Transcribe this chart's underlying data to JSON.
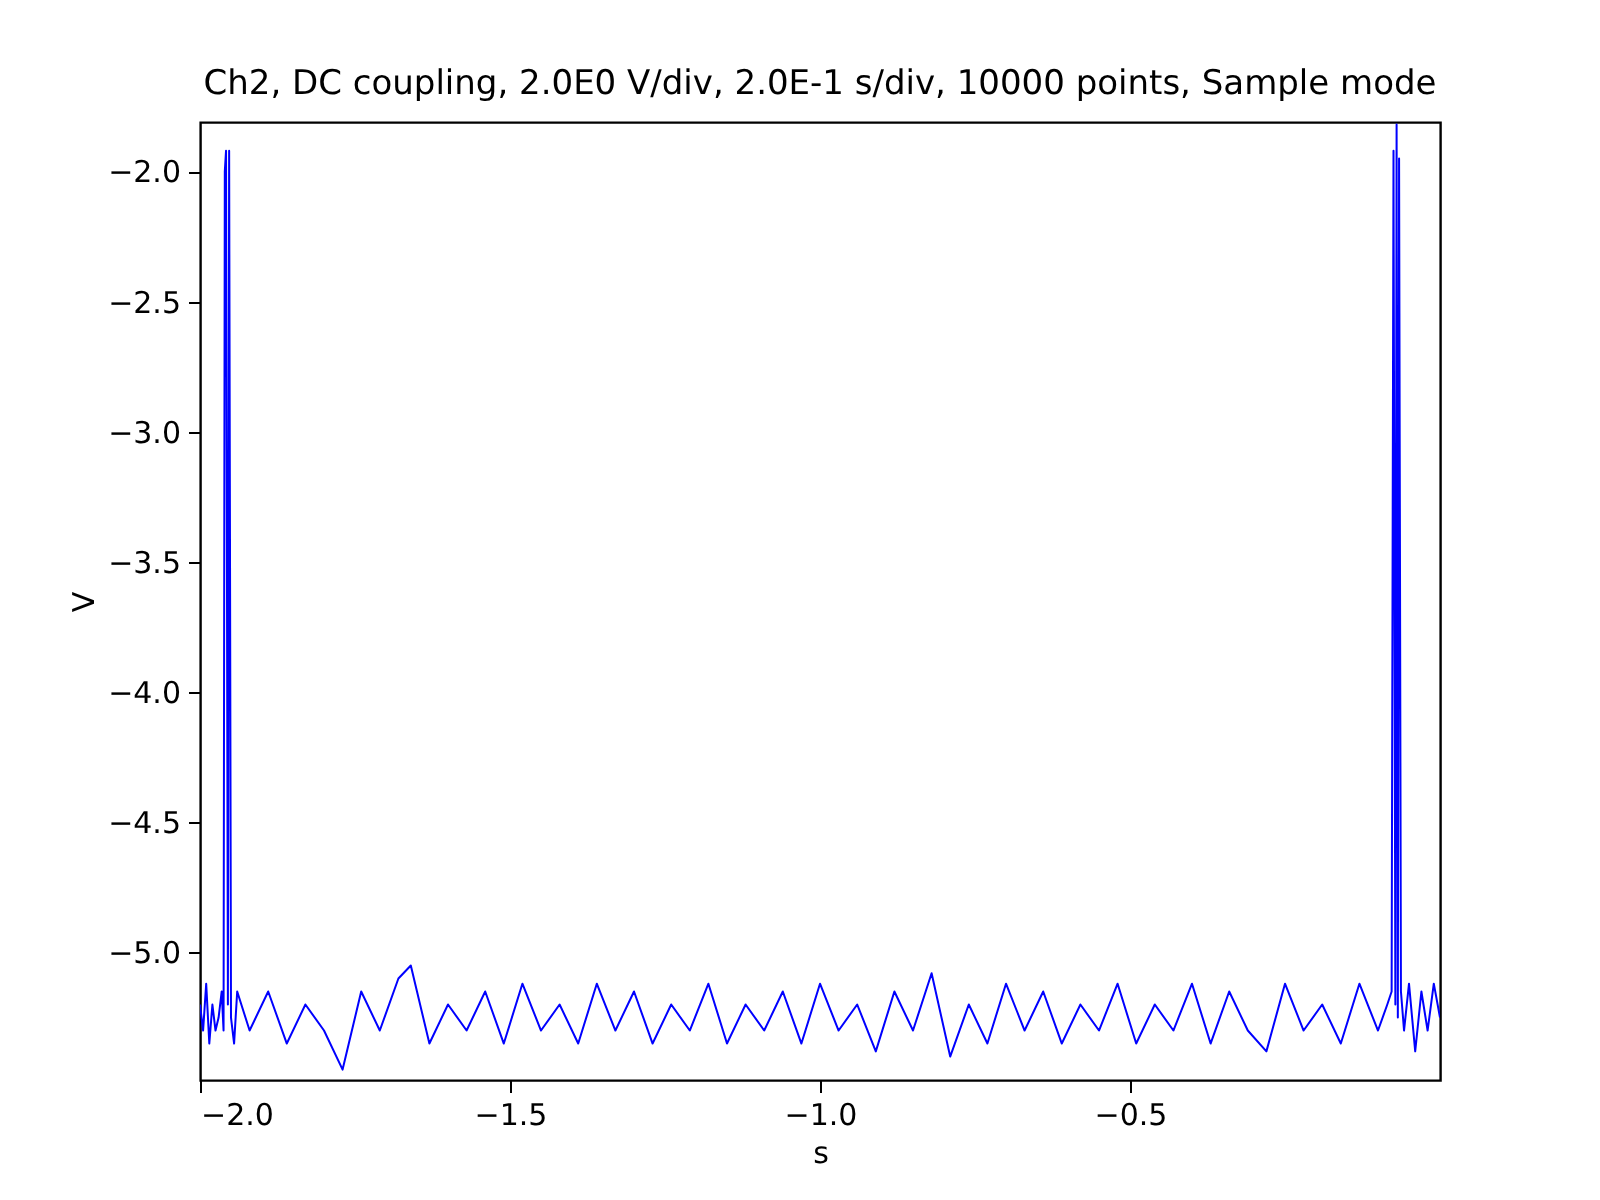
{
  "chart_data": {
    "type": "line",
    "title": "Ch2, DC coupling, 2.0E0 V/div, 2.0E-1 s/div, 10000 points, Sample mode",
    "xlabel": "s",
    "ylabel": "V",
    "xlim": [
      -2.0,
      0.0
    ],
    "xticks": [
      {
        "value": -2.0,
        "label": "−2.0"
      },
      {
        "value": -1.5,
        "label": "−1.5"
      },
      {
        "value": -1.0,
        "label": "−1.0"
      },
      {
        "value": -0.5,
        "label": "−0.5"
      }
    ],
    "ylim": [
      -5.49,
      -1.81
    ],
    "yticks": [
      {
        "value": -2.0,
        "label": "−2.0"
      },
      {
        "value": -2.5,
        "label": "−2.5"
      },
      {
        "value": -3.0,
        "label": "−3.0"
      },
      {
        "value": -3.5,
        "label": "−3.5"
      },
      {
        "value": -4.0,
        "label": "−4.0"
      },
      {
        "value": -4.5,
        "label": "−4.5"
      },
      {
        "value": -5.0,
        "label": "−5.0"
      }
    ],
    "grid": false,
    "marker": "none",
    "line_style": "solid",
    "series": [
      {
        "color": "#0000ff",
        "x": [
          -2.0,
          -1.995,
          -1.99,
          -1.985,
          -1.98,
          -1.975,
          -1.97,
          -1.965,
          -1.962,
          -1.96,
          -1.958,
          -1.955,
          -1.953,
          -1.95,
          -1.945,
          -1.94,
          -1.92,
          -1.89,
          -1.86,
          -1.83,
          -1.8,
          -1.77,
          -1.74,
          -1.71,
          -1.68,
          -1.66,
          -1.63,
          -1.6,
          -1.57,
          -1.54,
          -1.51,
          -1.48,
          -1.45,
          -1.42,
          -1.39,
          -1.36,
          -1.33,
          -1.3,
          -1.27,
          -1.24,
          -1.21,
          -1.18,
          -1.15,
          -1.12,
          -1.09,
          -1.06,
          -1.03,
          -1.0,
          -0.97,
          -0.94,
          -0.91,
          -0.88,
          -0.85,
          -0.82,
          -0.79,
          -0.76,
          -0.73,
          -0.7,
          -0.67,
          -0.64,
          -0.61,
          -0.58,
          -0.55,
          -0.52,
          -0.49,
          -0.46,
          -0.43,
          -0.4,
          -0.37,
          -0.34,
          -0.31,
          -0.28,
          -0.25,
          -0.22,
          -0.19,
          -0.16,
          -0.13,
          -0.1,
          -0.085,
          -0.078,
          -0.075,
          -0.072,
          -0.07,
          -0.068,
          -0.066,
          -0.063,
          -0.058,
          -0.05,
          -0.04,
          -0.03,
          -0.02,
          -0.01,
          0.0
        ],
        "values": [
          -5.2,
          -5.3,
          -5.12,
          -5.35,
          -5.2,
          -5.3,
          -5.25,
          -5.15,
          -5.3,
          -2.0,
          -1.92,
          -5.2,
          -1.92,
          -5.25,
          -5.35,
          -5.15,
          -5.3,
          -5.15,
          -5.35,
          -5.2,
          -5.3,
          -5.45,
          -5.15,
          -5.3,
          -5.1,
          -5.05,
          -5.35,
          -5.2,
          -5.3,
          -5.15,
          -5.35,
          -5.12,
          -5.3,
          -5.2,
          -5.35,
          -5.12,
          -5.3,
          -5.15,
          -5.35,
          -5.2,
          -5.3,
          -5.12,
          -5.35,
          -5.2,
          -5.3,
          -5.15,
          -5.35,
          -5.12,
          -5.3,
          -5.2,
          -5.38,
          -5.15,
          -5.3,
          -5.08,
          -5.4,
          -5.2,
          -5.35,
          -5.12,
          -5.3,
          -5.15,
          -5.35,
          -5.2,
          -5.3,
          -5.12,
          -5.35,
          -5.2,
          -5.3,
          -5.12,
          -5.35,
          -5.15,
          -5.3,
          -5.38,
          -5.12,
          -5.3,
          -5.2,
          -5.35,
          -5.12,
          -5.3,
          -5.2,
          -5.15,
          -1.92,
          -5.2,
          -1.82,
          -5.25,
          -1.95,
          -5.15,
          -5.3,
          -5.12,
          -5.38,
          -5.15,
          -5.3,
          -5.12,
          -5.25
        ]
      }
    ]
  }
}
